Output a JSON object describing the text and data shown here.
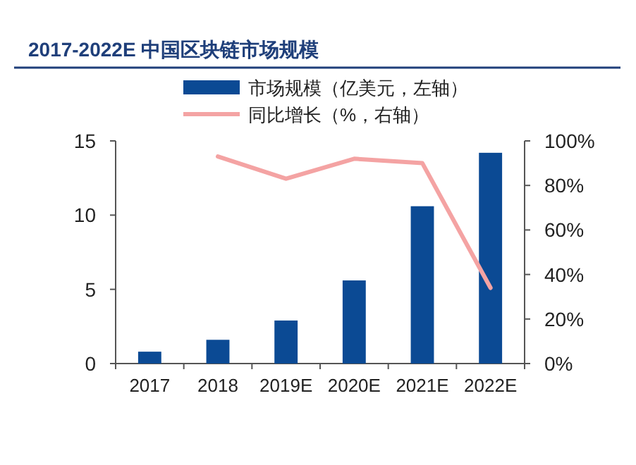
{
  "chart_data": {
    "type": "bar",
    "title": "2017-2022E 中国区块链市场规模",
    "categories": [
      "2017",
      "2018",
      "2019E",
      "2020E",
      "2021E",
      "2022E"
    ],
    "series": [
      {
        "name": "市场规模（亿美元，左轴）",
        "color": "#0b4a94",
        "values": [
          0.8,
          1.6,
          2.9,
          5.6,
          10.6,
          14.2
        ]
      },
      {
        "name": "同比增长（%，右轴）",
        "type": "line",
        "axis": "y2",
        "color": "#f4a3a3",
        "values": [
          null,
          93,
          83,
          92,
          90,
          34
        ]
      }
    ],
    "ylim": [
      0,
      15
    ],
    "yticks": [
      0,
      5,
      10,
      15
    ],
    "y2lim": [
      0,
      100
    ],
    "y2ticks": [
      {
        "value": 0,
        "label": "0%"
      },
      {
        "value": 20,
        "label": "20%"
      },
      {
        "value": 40,
        "label": "40%"
      },
      {
        "value": 60,
        "label": "60%"
      },
      {
        "value": 80,
        "label": "80%"
      },
      {
        "value": 100,
        "label": "100%"
      }
    ],
    "legend": "top",
    "grid": false
  }
}
